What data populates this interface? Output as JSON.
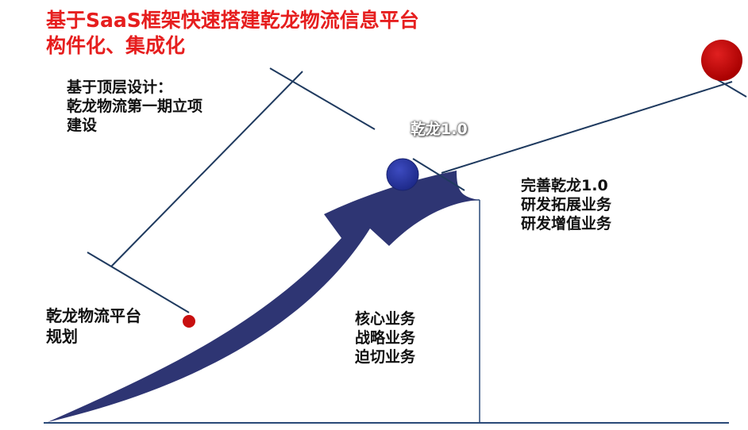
{
  "title": {
    "line1": "基于SaaS框架快速搭建乾龙物流信息平台",
    "line2": "构件化、集成化"
  },
  "top_design": {
    "line1": "基于顶层设计：",
    "line2": "乾龙物流第一期立项",
    "line3": "建设"
  },
  "version_label": "乾龙1.0",
  "improve": {
    "line1": "完善乾龙1.0",
    "line2": "研发拓展业务",
    "line3": "研发增值业务"
  },
  "platform_plan": {
    "line1": "乾龙物流平台",
    "line2": "规划"
  },
  "core": {
    "line1": "核心业务",
    "line2": "战略业务",
    "line3": "迫切业务"
  },
  "colors": {
    "title_red": "#e61e1e",
    "arrow_navy": "#2e3573",
    "line_navy": "#1f3a5f",
    "dot_red": "#c80f0f",
    "node_blue": "#2b3aa8"
  }
}
